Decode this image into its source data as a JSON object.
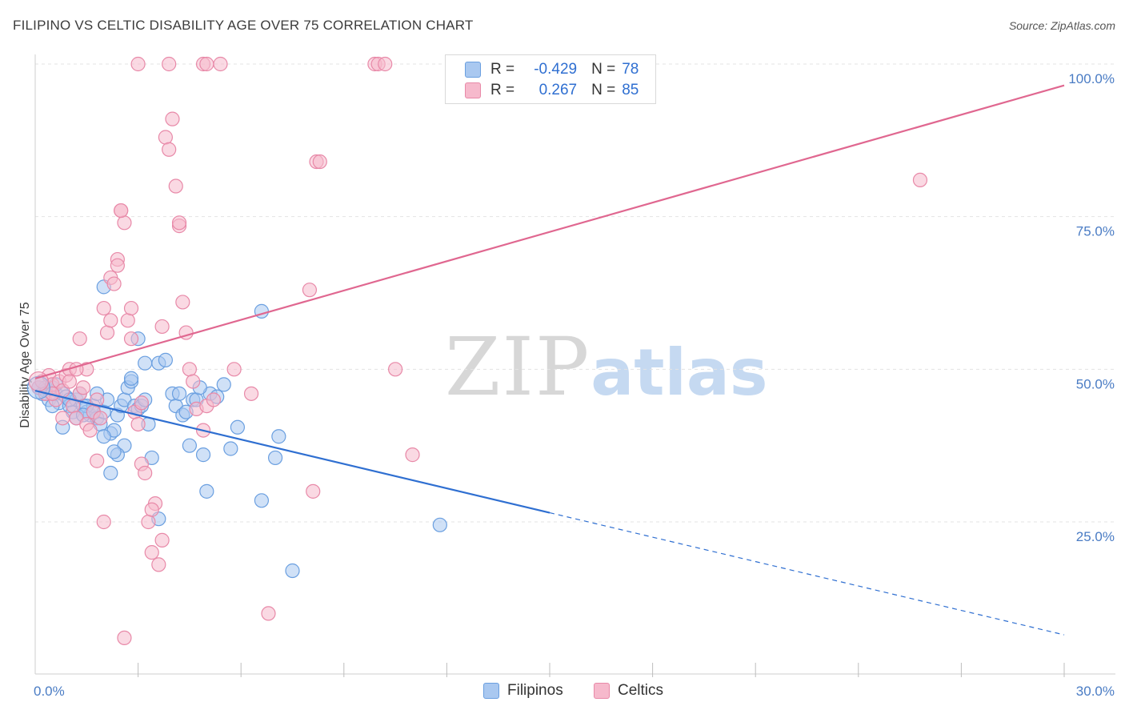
{
  "title": "FILIPINO VS CELTIC DISABILITY AGE OVER 75 CORRELATION CHART",
  "source": "Source: ZipAtlas.com",
  "watermark": {
    "zip": "ZIP",
    "atlas": "atlas"
  },
  "legend": {
    "rows": [
      {
        "r_label": "R =",
        "r_value": "-0.429",
        "n_label": "N =",
        "n_value": "78",
        "color": "#a9c8f0",
        "border": "#6a9fe0"
      },
      {
        "r_label": "R =",
        "r_value": "0.267",
        "n_label": "N =",
        "n_value": "85",
        "color": "#f6b9cc",
        "border": "#e889a8"
      }
    ]
  },
  "bottom_legend": [
    {
      "label": "Filipinos",
      "color": "#a9c8f0",
      "border": "#6a9fe0"
    },
    {
      "label": "Celtics",
      "color": "#f6b9cc",
      "border": "#e889a8"
    }
  ],
  "chart_data": {
    "type": "scatter",
    "title": "FILIPINO VS CELTIC DISABILITY AGE OVER 75 CORRELATION CHART",
    "xlabel": "",
    "ylabel": "Disability Age Over 75",
    "xlim": [
      0,
      30
    ],
    "ylim": [
      0,
      105
    ],
    "x_tick_labels": [
      {
        "value": 0,
        "label": "0.0%"
      },
      {
        "value": 30,
        "label": "30.0%"
      }
    ],
    "y_tick_labels": [
      {
        "value": 25,
        "label": "25.0%"
      },
      {
        "value": 50,
        "label": "50.0%"
      },
      {
        "value": 75,
        "label": "75.0%"
      },
      {
        "value": 100,
        "label": "100.0%"
      }
    ],
    "x_minor_ticks": [
      3,
      6,
      9,
      12,
      15,
      18,
      21,
      24,
      27,
      30
    ],
    "grid": true,
    "series": [
      {
        "name": "Filipinos",
        "color": "#6a9fe0",
        "fill": "#a9c8f0",
        "trend": {
          "x0": 0,
          "y0": 46.5,
          "x1": 15,
          "y1": 26.5,
          "dash_to_x": 30,
          "dash_to_y": 6.5,
          "color": "#2f6fd1"
        },
        "points": [
          [
            0.1,
            47
          ],
          [
            0.2,
            46
          ],
          [
            0.3,
            46.5
          ],
          [
            0.4,
            45
          ],
          [
            0.5,
            47
          ],
          [
            0.6,
            46
          ],
          [
            0.7,
            44.5
          ],
          [
            0.8,
            46
          ],
          [
            0.9,
            45.5
          ],
          [
            1.0,
            44
          ],
          [
            1.1,
            43
          ],
          [
            1.2,
            45
          ],
          [
            1.3,
            46
          ],
          [
            1.4,
            44
          ],
          [
            1.5,
            43
          ],
          [
            1.6,
            42.5
          ],
          [
            1.7,
            44
          ],
          [
            1.8,
            42
          ],
          [
            1.9,
            41
          ],
          [
            2.0,
            43
          ],
          [
            2.1,
            45
          ],
          [
            2.2,
            39.5
          ],
          [
            2.3,
            40
          ],
          [
            2.4,
            42.5
          ],
          [
            2.5,
            44
          ],
          [
            2.6,
            45
          ],
          [
            2.7,
            47
          ],
          [
            2.8,
            48
          ],
          [
            2.9,
            44
          ],
          [
            3.0,
            43.5
          ],
          [
            3.1,
            44
          ],
          [
            3.2,
            45
          ],
          [
            3.3,
            41
          ],
          [
            3.4,
            35.5
          ],
          [
            3.6,
            51
          ],
          [
            3.8,
            51.5
          ],
          [
            4.0,
            46
          ],
          [
            4.1,
            44
          ],
          [
            4.2,
            46
          ],
          [
            4.3,
            42.5
          ],
          [
            4.4,
            43
          ],
          [
            4.5,
            37.5
          ],
          [
            4.6,
            45
          ],
          [
            4.7,
            45
          ],
          [
            4.9,
            36
          ],
          [
            5.0,
            30
          ],
          [
            5.1,
            46
          ],
          [
            5.3,
            45.5
          ],
          [
            5.5,
            47.5
          ],
          [
            5.7,
            37
          ],
          [
            5.9,
            40.5
          ],
          [
            6.6,
            59.5
          ],
          [
            6.6,
            28.5
          ],
          [
            7.0,
            35.5
          ],
          [
            7.1,
            39
          ],
          [
            7.5,
            17
          ],
          [
            11.8,
            24.5
          ],
          [
            2.0,
            63.5
          ],
          [
            3.0,
            55
          ],
          [
            0.8,
            40.5
          ],
          [
            1.2,
            42
          ],
          [
            1.8,
            46
          ],
          [
            2.2,
            33
          ],
          [
            2.6,
            37.5
          ],
          [
            1.5,
            44
          ],
          [
            0.5,
            44
          ],
          [
            1.0,
            45
          ],
          [
            2.0,
            39
          ],
          [
            2.4,
            36
          ],
          [
            2.8,
            48.5
          ],
          [
            3.2,
            51
          ],
          [
            3.6,
            25.5
          ],
          [
            0.3,
            47
          ],
          [
            0.6,
            47.5
          ],
          [
            1.4,
            42.5
          ],
          [
            4.8,
            47
          ],
          [
            2.3,
            36.5
          ],
          [
            1.7,
            43
          ]
        ]
      },
      {
        "name": "Celtics",
        "color": "#e889a8",
        "fill": "#f6b9cc",
        "trend": {
          "x0": 0,
          "y0": 48.5,
          "x1": 30,
          "y1": 96.5,
          "color": "#e06790"
        },
        "points": [
          [
            0.1,
            47
          ],
          [
            0.2,
            48
          ],
          [
            0.3,
            46
          ],
          [
            0.4,
            49
          ],
          [
            0.5,
            47.5
          ],
          [
            0.6,
            45
          ],
          [
            0.7,
            48
          ],
          [
            0.8,
            46.5
          ],
          [
            0.9,
            49
          ],
          [
            1.0,
            50
          ],
          [
            1.1,
            44
          ],
          [
            1.2,
            42
          ],
          [
            1.3,
            46
          ],
          [
            1.4,
            47
          ],
          [
            1.5,
            41
          ],
          [
            1.6,
            40
          ],
          [
            1.7,
            43
          ],
          [
            1.8,
            45
          ],
          [
            1.9,
            42
          ],
          [
            2.0,
            60
          ],
          [
            2.1,
            56
          ],
          [
            2.2,
            65
          ],
          [
            2.3,
            64
          ],
          [
            2.4,
            68
          ],
          [
            2.5,
            76
          ],
          [
            2.6,
            74
          ],
          [
            2.7,
            58
          ],
          [
            2.8,
            55
          ],
          [
            2.9,
            43
          ],
          [
            3.0,
            41
          ],
          [
            3.1,
            34.5
          ],
          [
            3.2,
            33
          ],
          [
            3.3,
            25
          ],
          [
            3.4,
            20
          ],
          [
            3.5,
            28
          ],
          [
            3.6,
            18
          ],
          [
            3.7,
            22
          ],
          [
            3.8,
            88
          ],
          [
            3.9,
            86
          ],
          [
            4.0,
            91
          ],
          [
            4.1,
            80
          ],
          [
            4.2,
            73.5
          ],
          [
            4.3,
            61
          ],
          [
            4.4,
            56
          ],
          [
            4.5,
            50
          ],
          [
            4.6,
            48
          ],
          [
            4.7,
            43.5
          ],
          [
            4.9,
            40
          ],
          [
            5.0,
            44
          ],
          [
            5.2,
            45
          ],
          [
            5.8,
            50
          ],
          [
            6.3,
            46
          ],
          [
            6.8,
            10
          ],
          [
            8.0,
            63
          ],
          [
            8.1,
            30
          ],
          [
            8.2,
            84
          ],
          [
            8.3,
            84
          ],
          [
            9.9,
            100
          ],
          [
            10.0,
            100
          ],
          [
            10.2,
            100
          ],
          [
            3.0,
            100
          ],
          [
            3.9,
            100
          ],
          [
            4.9,
            100
          ],
          [
            5.0,
            100
          ],
          [
            5.4,
            100
          ],
          [
            10.5,
            50
          ],
          [
            11.0,
            36
          ],
          [
            25.8,
            81
          ],
          [
            2.5,
            76
          ],
          [
            2.2,
            58
          ],
          [
            1.8,
            35
          ],
          [
            1.5,
            50
          ],
          [
            2.0,
            25
          ],
          [
            0.8,
            42
          ],
          [
            1.2,
            50
          ],
          [
            3.1,
            44.5
          ],
          [
            2.6,
            6
          ],
          [
            1.3,
            55
          ],
          [
            2.8,
            60
          ],
          [
            3.4,
            27
          ],
          [
            4.2,
            74
          ],
          [
            3.7,
            57
          ],
          [
            2.4,
            67
          ],
          [
            1.0,
            48
          ],
          [
            0.5,
            46
          ]
        ]
      }
    ]
  }
}
